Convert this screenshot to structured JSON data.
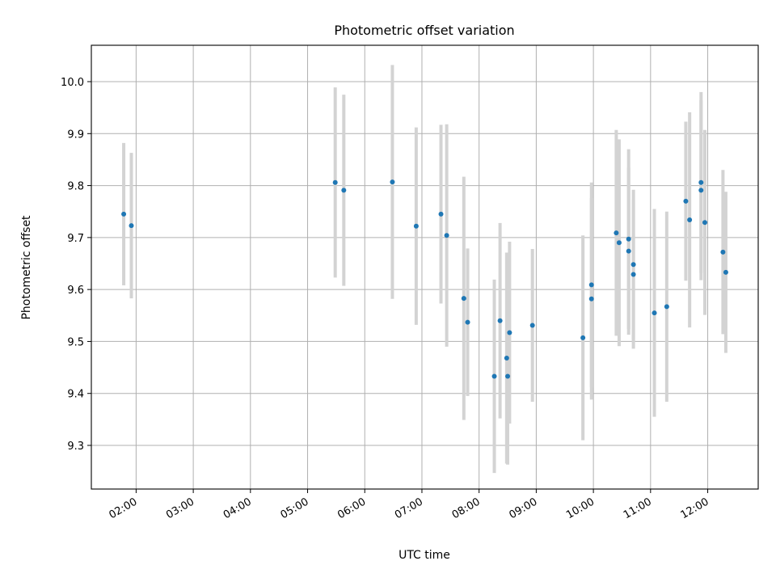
{
  "chart_data": {
    "type": "scatter",
    "title": "Photometric offset variation",
    "xlabel": "UTC time",
    "ylabel": "Photometric offset",
    "x_unit": "UTC hh:mm",
    "xlim": [
      "01:13",
      "12:53"
    ],
    "ylim": [
      9.216,
      10.07
    ],
    "grid": true,
    "x_tick_labels": [
      "02:00",
      "03:00",
      "04:00",
      "05:00",
      "06:00",
      "07:00",
      "08:00",
      "09:00",
      "10:00",
      "11:00",
      "12:00"
    ],
    "y_tick_labels": [
      "9.3",
      "9.4",
      "9.5",
      "9.6",
      "9.7",
      "9.8",
      "9.9",
      "10.0"
    ],
    "colors": {
      "points": "#1f77b4",
      "errorbars": "#d3d3d3",
      "grid": "#b0b0b0"
    },
    "series": [
      {
        "points": [
          {
            "x": "01:47",
            "y": 9.745,
            "err": 0.137
          },
          {
            "x": "01:55",
            "y": 9.723,
            "err": 0.14
          },
          {
            "x": "05:29",
            "y": 9.806,
            "err": 0.183
          },
          {
            "x": "05:38",
            "y": 9.791,
            "err": 0.184
          },
          {
            "x": "06:29",
            "y": 9.807,
            "err": 0.225
          },
          {
            "x": "06:54",
            "y": 9.722,
            "err": 0.19
          },
          {
            "x": "07:20",
            "y": 9.745,
            "err": 0.172
          },
          {
            "x": "07:26",
            "y": 9.704,
            "err": 0.214
          },
          {
            "x": "07:44",
            "y": 9.583,
            "err": 0.234
          },
          {
            "x": "07:48",
            "y": 9.537,
            "err": 0.142
          },
          {
            "x": "08:16",
            "y": 9.433,
            "err": 0.186
          },
          {
            "x": "08:22",
            "y": 9.54,
            "err": 0.188
          },
          {
            "x": "08:29",
            "y": 9.468,
            "err": 0.203
          },
          {
            "x": "08:30",
            "y": 9.433,
            "err": 0.17
          },
          {
            "x": "08:32",
            "y": 9.517,
            "err": 0.175
          },
          {
            "x": "08:56",
            "y": 9.531,
            "err": 0.147
          },
          {
            "x": "09:49",
            "y": 9.507,
            "err": 0.197
          },
          {
            "x": "09:58",
            "y": 9.609,
            "err": 0.197
          },
          {
            "x": "09:58",
            "y": 9.582,
            "err": 0.194
          },
          {
            "x": "10:24",
            "y": 9.709,
            "err": 0.198
          },
          {
            "x": "10:27",
            "y": 9.69,
            "err": 0.199
          },
          {
            "x": "10:37",
            "y": 9.697,
            "err": 0.173
          },
          {
            "x": "10:37",
            "y": 9.674,
            "err": 0.161
          },
          {
            "x": "10:42",
            "y": 9.648,
            "err": 0.144
          },
          {
            "x": "10:42",
            "y": 9.629,
            "err": 0.143
          },
          {
            "x": "11:04",
            "y": 9.555,
            "err": 0.2
          },
          {
            "x": "11:17",
            "y": 9.567,
            "err": 0.183
          },
          {
            "x": "11:37",
            "y": 9.77,
            "err": 0.153
          },
          {
            "x": "11:41",
            "y": 9.734,
            "err": 0.207
          },
          {
            "x": "11:53",
            "y": 9.806,
            "err": 0.174
          },
          {
            "x": "11:53",
            "y": 9.791,
            "err": 0.173
          },
          {
            "x": "11:57",
            "y": 9.729,
            "err": 0.178
          },
          {
            "x": "12:16",
            "y": 9.672,
            "err": 0.158
          },
          {
            "x": "12:19",
            "y": 9.633,
            "err": 0.155
          }
        ]
      }
    ]
  }
}
